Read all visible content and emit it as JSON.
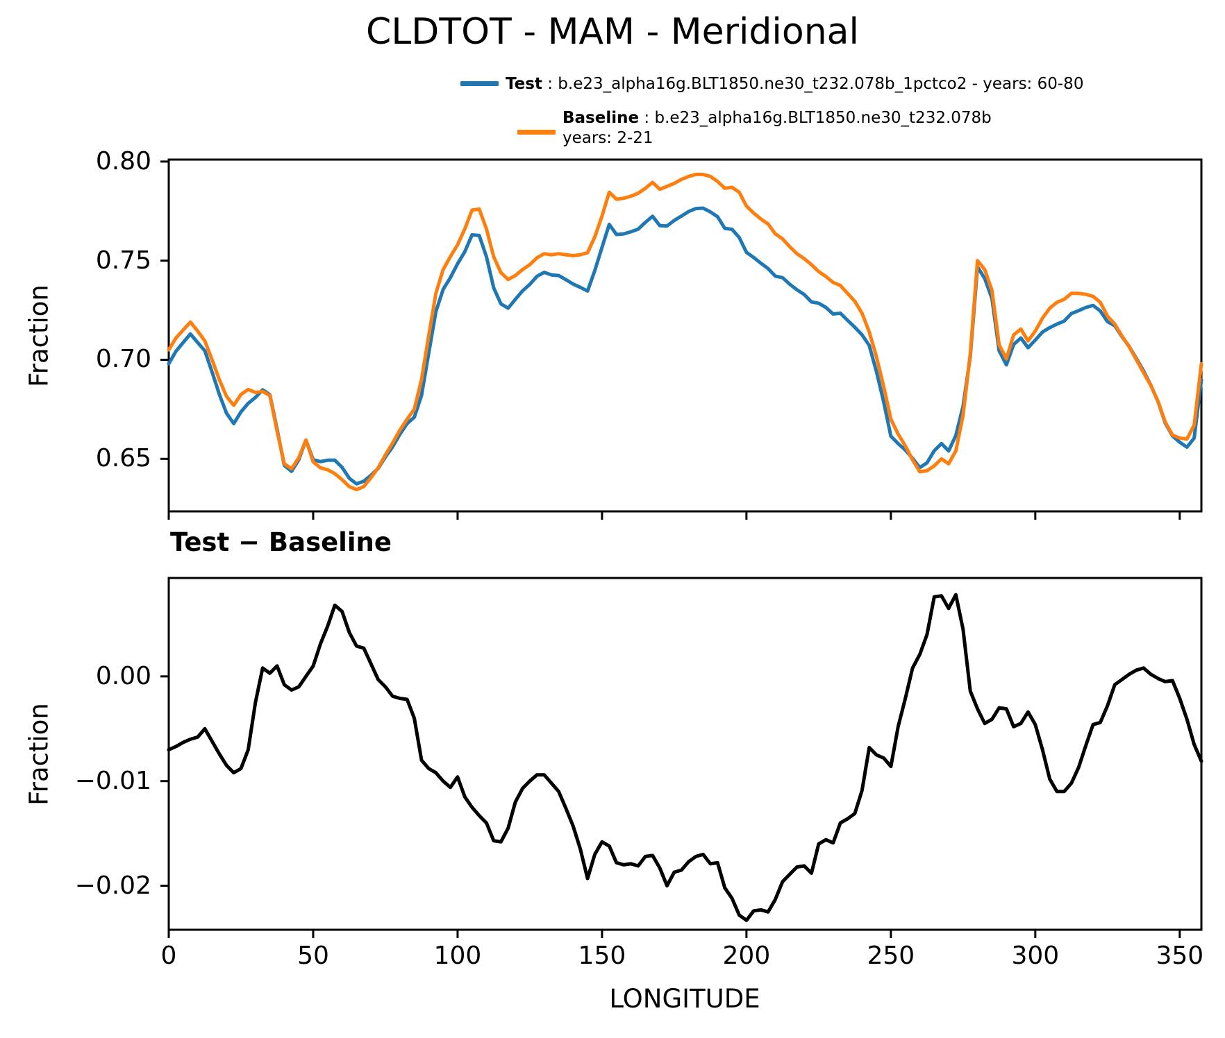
{
  "title": "CLDTOT - MAM - Meridional",
  "legend": {
    "test_name": "Test",
    "test_desc": " : b.e23_alpha16g.BLT1850.ne30_t232.078b_1pctco2 - years: 60-80",
    "baseline_name": "Baseline",
    "baseline_desc": " : b.e23_alpha16g.BLT1850.ne30_t232.078b",
    "baseline_years": "years: 2-21",
    "test_color": "#1f77b4",
    "baseline_color": "#ff7f0e"
  },
  "subtitle_bottom_panel": "Test − Baseline",
  "chart_data": {
    "type": "line",
    "xlabel": "LONGITUDE",
    "xlim": [
      0,
      357.5
    ],
    "xticks": {
      "values": [
        0,
        50,
        100,
        150,
        200,
        250,
        300,
        350
      ],
      "labels": [
        "0",
        "50",
        "100",
        "150",
        "200",
        "250",
        "300",
        "350"
      ]
    },
    "longitudes": [
      0,
      2.5,
      5,
      7.5,
      10,
      12.5,
      15,
      17.5,
      20,
      22.5,
      25,
      27.5,
      30,
      32.5,
      35,
      37.5,
      40,
      42.5,
      45,
      47.5,
      50,
      52.5,
      55,
      57.5,
      60,
      62.5,
      65,
      67.5,
      70,
      72.5,
      75,
      77.5,
      80,
      82.5,
      85,
      87.5,
      90,
      92.5,
      95,
      97.5,
      100,
      102.5,
      105,
      107.5,
      110,
      112.5,
      115,
      117.5,
      120,
      122.5,
      125,
      127.5,
      130,
      132.5,
      135,
      137.5,
      140,
      142.5,
      145,
      147.5,
      150,
      152.5,
      155,
      157.5,
      160,
      162.5,
      165,
      167.5,
      170,
      172.5,
      175,
      177.5,
      180,
      182.5,
      185,
      187.5,
      190,
      192.5,
      195,
      197.5,
      200,
      202.5,
      205,
      207.5,
      210,
      212.5,
      215,
      217.5,
      220,
      222.5,
      225,
      227.5,
      230,
      232.5,
      235,
      237.5,
      240,
      242.5,
      245,
      247.5,
      250,
      252.5,
      255,
      257.5,
      260,
      262.5,
      265,
      267.5,
      270,
      272.5,
      275,
      277.5,
      280,
      282.5,
      285,
      287.5,
      290,
      292.5,
      295,
      297.5,
      300,
      302.5,
      305,
      307.5,
      310,
      312.5,
      315,
      317.5,
      320,
      322.5,
      325,
      327.5,
      330,
      332.5,
      335,
      337.5,
      340,
      342.5,
      345,
      347.5,
      350,
      352.5,
      355,
      357.5
    ],
    "panels": [
      {
        "name": "main",
        "ylabel": "Fraction",
        "ylim": [
          0.6235,
          0.801
        ],
        "yticks": {
          "values": [
            0.8,
            0.75,
            0.7,
            0.65
          ],
          "labels": [
            "0.80",
            "0.75",
            "0.70",
            "0.65"
          ]
        },
        "show_xtick_labels": false,
        "legend_position": "above-right",
        "grid": false,
        "series": [
          {
            "name": "Test",
            "color": "#1f77b4",
            "values": [
              0.698,
              0.7043,
              0.7087,
              0.713,
              0.7087,
              0.7045,
              0.6938,
              0.6826,
              0.673,
              0.6678,
              0.6737,
              0.678,
              0.681,
              0.6848,
              0.6823,
              0.665,
              0.6467,
              0.6437,
              0.6495,
              0.6595,
              0.6495,
              0.6486,
              0.6493,
              0.6493,
              0.6457,
              0.6402,
              0.6374,
              0.6387,
              0.6417,
              0.6452,
              0.651,
              0.6561,
              0.6624,
              0.6678,
              0.671,
              0.682,
              0.7032,
              0.7243,
              0.7355,
              0.7414,
              0.7484,
              0.7545,
              0.763,
              0.7627,
              0.752,
              0.7363,
              0.7282,
              0.726,
              0.7305,
              0.7348,
              0.738,
              0.7421,
              0.7441,
              0.7428,
              0.7425,
              0.7404,
              0.7382,
              0.7365,
              0.7347,
              0.745,
              0.7567,
              0.7683,
              0.7632,
              0.7635,
              0.7646,
              0.7659,
              0.7693,
              0.7724,
              0.7677,
              0.7675,
              0.7703,
              0.7725,
              0.7748,
              0.7763,
              0.7765,
              0.7746,
              0.7722,
              0.7663,
              0.7658,
              0.7617,
              0.7542,
              0.7516,
              0.7487,
              0.746,
              0.7422,
              0.7414,
              0.7381,
              0.7353,
              0.7329,
              0.7292,
              0.7285,
              0.7264,
              0.7231,
              0.7235,
              0.7199,
              0.7164,
              0.7126,
              0.7072,
              0.694,
              0.6787,
              0.6614,
              0.6577,
              0.6544,
              0.6503,
              0.6456,
              0.648,
              0.6541,
              0.6577,
              0.654,
              0.6618,
              0.6765,
              0.7016,
              0.7469,
              0.741,
              0.7309,
              0.7045,
              0.6974,
              0.7077,
              0.711,
              0.7061,
              0.7099,
              0.714,
              0.7162,
              0.718,
              0.7195,
              0.7233,
              0.7248,
              0.7264,
              0.7274,
              0.7246,
              0.7192,
              0.7172,
              0.7117,
              0.7067,
              0.7006,
              0.6943,
              0.6872,
              0.6788,
              0.668,
              0.6616,
              0.6584,
              0.6559,
              0.6605,
              0.6899
            ]
          },
          {
            "name": "Baseline",
            "color": "#ff7f0e",
            "values": [
              0.705,
              0.711,
              0.715,
              0.719,
              0.7145,
              0.7095,
              0.7,
              0.69,
              0.6815,
              0.677,
              0.6825,
              0.685,
              0.6835,
              0.684,
              0.682,
              0.664,
              0.6475,
              0.645,
              0.6505,
              0.6595,
              0.6485,
              0.6455,
              0.6445,
              0.6425,
              0.6395,
              0.636,
              0.6345,
              0.636,
              0.6405,
              0.6455,
              0.652,
              0.658,
              0.6645,
              0.67,
              0.675,
              0.69,
              0.712,
              0.7335,
              0.7455,
              0.752,
              0.758,
              0.766,
              0.7755,
              0.776,
              0.766,
              0.752,
              0.744,
              0.7405,
              0.7425,
              0.7455,
              0.748,
              0.7515,
              0.7535,
              0.753,
              0.7535,
              0.753,
              0.7525,
              0.753,
              0.754,
              0.762,
              0.7725,
              0.7845,
              0.781,
              0.7815,
              0.7825,
              0.784,
              0.7865,
              0.7895,
              0.786,
              0.7875,
              0.789,
              0.791,
              0.7925,
              0.7935,
              0.7935,
              0.7925,
              0.79,
              0.7865,
              0.787,
              0.7845,
              0.7775,
              0.774,
              0.771,
              0.7685,
              0.7635,
              0.761,
              0.757,
              0.7535,
              0.751,
              0.748,
              0.7445,
              0.742,
              0.739,
              0.7375,
              0.7335,
              0.7295,
              0.7235,
              0.714,
              0.7015,
              0.6865,
              0.67,
              0.6625,
              0.6565,
              0.6495,
              0.6435,
              0.644,
              0.6465,
              0.65,
              0.6475,
              0.654,
              0.672,
              0.703,
              0.75,
              0.7455,
              0.735,
              0.7075,
              0.7005,
              0.7125,
              0.7155,
              0.7095,
              0.7145,
              0.721,
              0.726,
              0.729,
              0.7305,
              0.7335,
              0.7335,
              0.733,
              0.732,
              0.729,
              0.722,
              0.718,
              0.712,
              0.7065,
              0.7,
              0.6935,
              0.687,
              0.679,
              0.6685,
              0.662,
              0.6605,
              0.66,
              0.667,
              0.698
            ]
          }
        ]
      },
      {
        "name": "difference",
        "title": "Test − Baseline",
        "ylabel": "Fraction",
        "ylim": [
          -0.0242,
          0.0094
        ],
        "yticks": {
          "values": [
            0.0,
            -0.01,
            -0.02
          ],
          "labels": [
            "0.00",
            "−0.01",
            "−0.02"
          ]
        },
        "show_xtick_labels": true,
        "grid": false,
        "series": [
          {
            "name": "Test minus Baseline",
            "color": "#000000",
            "values": [
              -0.007,
              -0.0067,
              -0.0063,
              -0.006,
              -0.0058,
              -0.005,
              -0.0062,
              -0.0074,
              -0.0085,
              -0.0092,
              -0.0088,
              -0.007,
              -0.0025,
              0.0008,
              0.0003,
              0.001,
              -0.0008,
              -0.0013,
              -0.001,
              0.0,
              0.001,
              0.0031,
              0.0048,
              0.0068,
              0.0062,
              0.0042,
              0.0029,
              0.0027,
              0.0012,
              -0.0003,
              -0.001,
              -0.0019,
              -0.0021,
              -0.0022,
              -0.004,
              -0.008,
              -0.0088,
              -0.0092,
              -0.01,
              -0.0106,
              -0.0096,
              -0.0115,
              -0.0125,
              -0.0133,
              -0.014,
              -0.0157,
              -0.0158,
              -0.0145,
              -0.012,
              -0.0107,
              -0.01,
              -0.0094,
              -0.0094,
              -0.0102,
              -0.011,
              -0.0126,
              -0.0143,
              -0.0165,
              -0.0193,
              -0.017,
              -0.0158,
              -0.0162,
              -0.0178,
              -0.018,
              -0.0179,
              -0.0181,
              -0.0172,
              -0.0171,
              -0.0183,
              -0.02,
              -0.0187,
              -0.0185,
              -0.0177,
              -0.0172,
              -0.017,
              -0.0179,
              -0.0178,
              -0.0202,
              -0.0212,
              -0.0228,
              -0.0233,
              -0.0224,
              -0.0223,
              -0.0225,
              -0.0213,
              -0.0196,
              -0.0189,
              -0.0182,
              -0.0181,
              -0.0188,
              -0.016,
              -0.0156,
              -0.0159,
              -0.014,
              -0.0136,
              -0.0131,
              -0.0109,
              -0.0068,
              -0.0075,
              -0.0078,
              -0.0086,
              -0.0048,
              -0.0021,
              0.0008,
              0.0021,
              0.004,
              0.0076,
              0.0077,
              0.0065,
              0.0078,
              0.0045,
              -0.0014,
              -0.0031,
              -0.0045,
              -0.0041,
              -0.003,
              -0.0031,
              -0.0048,
              -0.0045,
              -0.0034,
              -0.0046,
              -0.007,
              -0.0098,
              -0.011,
              -0.011,
              -0.0102,
              -0.0087,
              -0.0066,
              -0.0046,
              -0.0044,
              -0.0028,
              -0.0008,
              -0.0003,
              0.0002,
              0.0006,
              0.0008,
              0.0002,
              -0.0002,
              -0.0005,
              -0.0004,
              -0.0021,
              -0.0041,
              -0.0065,
              -0.0081
            ]
          }
        ]
      }
    ]
  }
}
